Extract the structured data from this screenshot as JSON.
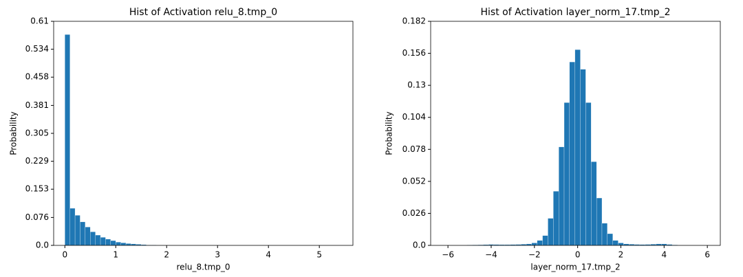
{
  "chart_data": [
    {
      "type": "histogram",
      "title": "Hist of Activation relu_8.tmp_0",
      "x_label": "relu_8.tmp_0",
      "y_label": "Probability",
      "color": "#1f77b4",
      "bins": [
        0,
        0.1,
        0.2,
        0.3,
        0.4,
        0.5,
        0.6,
        0.7,
        0.8,
        0.9,
        1.0,
        1.1,
        1.2,
        1.3,
        1.4,
        1.5,
        1.6,
        1.7,
        1.8
      ],
      "values": [
        0.574,
        0.101,
        0.082,
        0.064,
        0.05,
        0.037,
        0.028,
        0.022,
        0.017,
        0.013,
        0.009,
        0.007,
        0.005,
        0.004,
        0.003,
        0.002,
        0.001,
        0.001
      ],
      "xlim": [
        -0.22,
        5.66
      ],
      "xticks": [
        0,
        1,
        2,
        3,
        4,
        5
      ],
      "ylim": [
        0,
        0.61
      ],
      "yticks": [
        {
          "value": 0,
          "label": "0.0"
        },
        0.076,
        0.153,
        0.229,
        0.305,
        0.381,
        0.458,
        0.534,
        0.61
      ]
    },
    {
      "type": "histogram",
      "title": "Hist of Activation layer_norm_17.tmp_2",
      "x_label": "layer_norm_17.tmp_2",
      "y_label": "Probability",
      "color": "#1f77b4",
      "bins": [
        -5.125,
        -4.875,
        -4.625,
        -4.375,
        -4.125,
        -3.875,
        -3.625,
        -3.375,
        -3.125,
        -2.875,
        -2.625,
        -2.375,
        -2.125,
        -1.875,
        -1.625,
        -1.375,
        -1.125,
        -0.875,
        -0.625,
        -0.375,
        -0.125,
        0.125,
        0.375,
        0.625,
        0.875,
        1.125,
        1.375,
        1.625,
        1.875,
        2.125,
        2.375,
        2.625,
        2.875,
        3.125,
        3.375,
        3.625,
        3.875,
        4.125,
        4.375,
        4.625
      ],
      "values": [
        0.0003,
        0.0004,
        0.0005,
        0.0006,
        0.0008,
        0.0007,
        0.0006,
        0.0006,
        0.0007,
        0.0008,
        0.001,
        0.0012,
        0.002,
        0.004,
        0.008,
        0.022,
        0.044,
        0.08,
        0.116,
        0.149,
        0.159,
        0.143,
        0.116,
        0.068,
        0.0385,
        0.018,
        0.0095,
        0.004,
        0.002,
        0.0012,
        0.001,
        0.0008,
        0.0007,
        0.0008,
        0.001,
        0.0012,
        0.0012,
        0.0008,
        0.0004
      ],
      "xlim": [
        -6.8,
        6.6
      ],
      "xticks": [
        {
          "value": -6,
          "label": "−6"
        },
        {
          "value": -4,
          "label": "−4"
        },
        {
          "value": -2,
          "label": "−2"
        },
        0,
        2,
        4,
        6
      ],
      "ylim": [
        0,
        0.182
      ],
      "yticks": [
        {
          "value": 0,
          "label": "0.0"
        },
        0.026,
        0.052,
        0.078,
        0.104,
        0.13,
        0.156,
        0.182
      ]
    }
  ]
}
